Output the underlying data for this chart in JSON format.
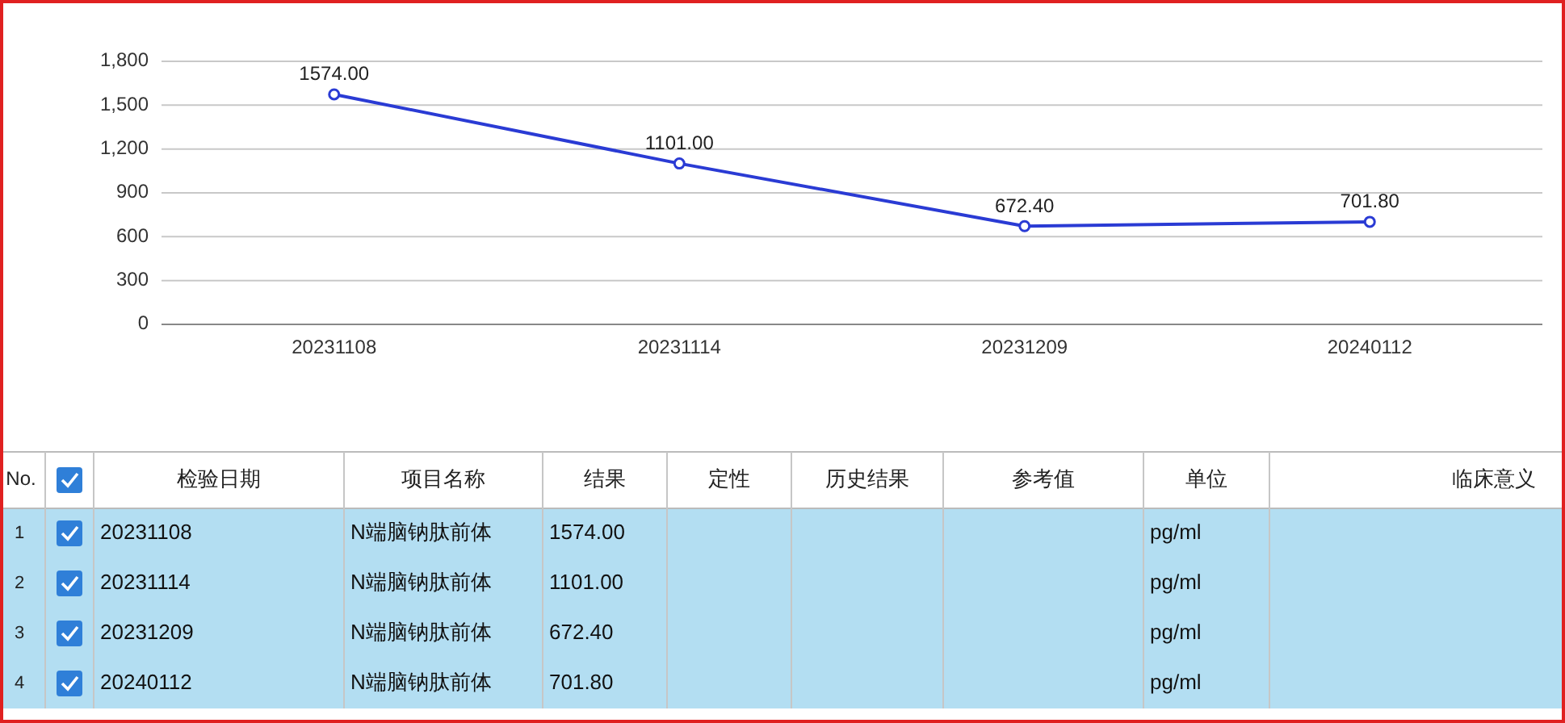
{
  "chart_data": {
    "type": "line",
    "categories": [
      "20231108",
      "20231114",
      "20231209",
      "20240112"
    ],
    "series": [
      {
        "color": "#2a3bd4",
        "values": [
          1574.0,
          1101.0,
          672.4,
          701.8
        ],
        "value_labels": [
          "1574.00",
          "1101.00",
          "672.40",
          "701.80"
        ]
      }
    ],
    "ylim": [
      0,
      1800
    ],
    "yticks": [
      0,
      300,
      600,
      900,
      {
        "value": 1200,
        "label": "1,200"
      },
      {
        "value": 1500,
        "label": "1,500"
      },
      {
        "value": 1800,
        "label": "1,800"
      }
    ],
    "grid": "y",
    "marker": "circle",
    "line_style": "solid",
    "annotations": [
      "No.",
      "检验日期",
      "项目名称",
      "结果",
      "定性",
      "历史结果",
      "参考值",
      "单位",
      "临床意义",
      "N端脑钠肽前体",
      "pg/ml",
      "1",
      "2",
      "3",
      "4"
    ]
  }
}
